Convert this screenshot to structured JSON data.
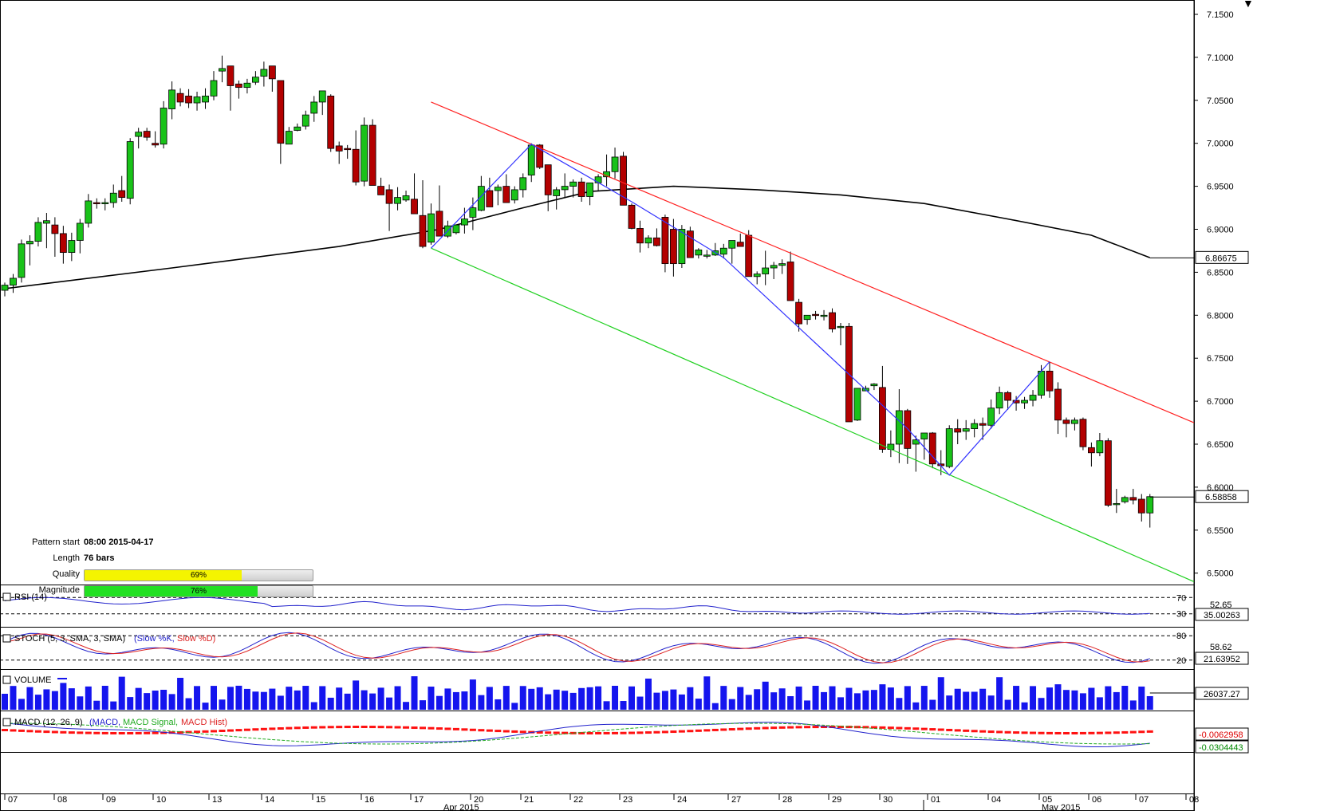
{
  "corner_marker": "▼",
  "main_chart": {
    "price_axis_ticks": [
      "7.1500",
      "7.1000",
      "7.0500",
      "7.0000",
      "6.9500",
      "6.9000",
      "6.8500",
      "6.8000",
      "6.7500",
      "6.7000",
      "6.6500",
      "6.6000",
      "6.5500",
      "6.5000"
    ],
    "ma_value_label": "6.86675",
    "last_price_label": "6.58858",
    "colors": {
      "bull": "#19c219",
      "bear": "#b30000",
      "ma": "#000000",
      "upper_channel": "#ff2020",
      "lower_channel": "#20d020",
      "pattern": "#3333ff"
    }
  },
  "pattern_info": {
    "start_label": "Pattern start",
    "start_value": "08:00 2015-04-17",
    "length_label": "Length",
    "length_value": "76 bars",
    "quality_label": "Quality",
    "quality_value": "69%",
    "quality_fraction": 0.69,
    "quality_color": "#f4f400",
    "magnitude_label": "Magnitude",
    "magnitude_value": "76%",
    "magnitude_fraction": 0.76,
    "magnitude_color": "#22e022"
  },
  "rsi_panel": {
    "title": "RSI (14)",
    "level_70": "70",
    "level_30": "30",
    "mid_label": "52.65",
    "value_label": "35.00263"
  },
  "stoch_panel": {
    "title": "STOCH (5, 3, SMA, 3, SMA)",
    "legend_k": "(Slow %K,",
    "legend_d": "Slow %D)",
    "level_80": "80",
    "level_20": "20",
    "mid_label": "58.62",
    "value_label": "21.63952"
  },
  "volume_panel": {
    "title": "VOLUME",
    "value_label": "26037.27"
  },
  "macd_panel": {
    "title": "MACD (12, 26, 9)",
    "legend_macd": "(MACD,",
    "legend_signal": "MACD Signal,",
    "legend_hist": "MACD Hist)",
    "value_label_1": "-0.0062958",
    "value_label_2": "-0.0304443"
  },
  "time_axis": {
    "day_labels": [
      "07",
      "08",
      "09",
      "10",
      "13",
      "14",
      "15",
      "16",
      "17",
      "20",
      "21",
      "22",
      "23",
      "24",
      "27",
      "28",
      "29",
      "30",
      "01",
      "04",
      "05",
      "06",
      "07",
      "08"
    ],
    "month_labels": [
      "Apr 2015",
      "May 2015"
    ]
  },
  "chart_data": {
    "type": "candlestick",
    "series": [
      {
        "name": "Candles",
        "values": [
          [
            6.829,
            6.838,
            6.822,
            6.835
          ],
          [
            6.835,
            6.848,
            6.826,
            6.843
          ],
          [
            6.844,
            6.888,
            6.838,
            6.883
          ],
          [
            6.883,
            6.893,
            6.858,
            6.886
          ],
          [
            6.886,
            6.914,
            6.88,
            6.908
          ],
          [
            6.907,
            6.919,
            6.878,
            6.91
          ],
          [
            6.905,
            6.914,
            6.868,
            6.895
          ],
          [
            6.895,
            6.904,
            6.86,
            6.873
          ],
          [
            6.873,
            6.896,
            6.863,
            6.887
          ],
          [
            6.887,
            6.912,
            6.872,
            6.907
          ],
          [
            6.907,
            6.941,
            6.902,
            6.933
          ],
          [
            6.931,
            6.936,
            6.924,
            6.93
          ],
          [
            6.93,
            6.936,
            6.922,
            6.931
          ],
          [
            6.931,
            6.952,
            6.925,
            6.942
          ],
          [
            6.945,
            6.962,
            6.932,
            6.937
          ],
          [
            6.936,
            7.006,
            6.929,
            7.002
          ],
          [
            7.008,
            7.018,
            6.994,
            7.013
          ],
          [
            7.014,
            7.018,
            7.003,
            7.007
          ],
          [
            7.0,
            7.014,
            6.995,
            6.998
          ],
          [
            6.999,
            7.049,
            6.994,
            7.041
          ],
          [
            7.04,
            7.072,
            7.028,
            7.062
          ],
          [
            7.058,
            7.064,
            7.043,
            7.048
          ],
          [
            7.055,
            7.063,
            7.041,
            7.047
          ],
          [
            7.047,
            7.06,
            7.038,
            7.054
          ],
          [
            7.048,
            7.064,
            7.04,
            7.055
          ],
          [
            7.055,
            7.084,
            7.05,
            7.073
          ],
          [
            7.084,
            7.102,
            7.071,
            7.087
          ],
          [
            7.09,
            7.09,
            7.038,
            7.067
          ],
          [
            7.069,
            7.073,
            7.052,
            7.065
          ],
          [
            7.065,
            7.075,
            7.058,
            7.07
          ],
          [
            7.071,
            7.084,
            7.068,
            7.077
          ],
          [
            7.078,
            7.095,
            7.066,
            7.086
          ],
          [
            7.09,
            7.09,
            7.06,
            7.075
          ],
          [
            7.073,
            7.073,
            6.976,
            7.0
          ],
          [
            6.999,
            7.019,
            6.999,
            7.014
          ],
          [
            7.015,
            7.023,
            7.014,
            7.019
          ],
          [
            7.02,
            7.038,
            7.016,
            7.033
          ],
          [
            7.035,
            7.055,
            7.025,
            7.048
          ],
          [
            7.048,
            7.06,
            7.033,
            7.061
          ],
          [
            7.055,
            7.057,
            6.99,
            6.994
          ],
          [
            6.997,
            7.002,
            6.976,
            6.991
          ],
          [
            6.994,
            6.998,
            6.982,
            6.993
          ],
          [
            6.993,
            7.015,
            6.951,
            6.955
          ],
          [
            6.956,
            7.03,
            6.95,
            7.021
          ],
          [
            7.021,
            7.028,
            6.978,
            6.951
          ],
          [
            6.95,
            6.96,
            6.94,
            6.94
          ],
          [
            6.946,
            6.952,
            6.898,
            6.93
          ],
          [
            6.93,
            6.949,
            6.922,
            6.937
          ],
          [
            6.934,
            6.945,
            6.932,
            6.939
          ],
          [
            6.935,
            6.965,
            6.918,
            6.918
          ],
          [
            6.916,
            6.957,
            6.878,
            6.88
          ],
          [
            6.885,
            6.93,
            6.882,
            6.918
          ],
          [
            6.921,
            6.951,
            6.897,
            6.892
          ],
          [
            6.892,
            6.91,
            6.89,
            6.904
          ],
          [
            6.896,
            6.905,
            6.894,
            6.905
          ],
          [
            6.905,
            6.925,
            6.895,
            6.912
          ],
          [
            6.914,
            6.937,
            6.899,
            6.925
          ],
          [
            6.922,
            6.962,
            6.921,
            6.95
          ],
          [
            6.945,
            6.96,
            6.926,
            6.926
          ],
          [
            6.945,
            6.952,
            6.928,
            6.949
          ],
          [
            6.95,
            6.964,
            6.94,
            6.931
          ],
          [
            6.934,
            6.95,
            6.93,
            6.946
          ],
          [
            6.946,
            6.965,
            6.937,
            6.96
          ],
          [
            6.963,
            7.0,
            6.955,
            6.998
          ],
          [
            6.998,
            6.999,
            6.97,
            6.972
          ],
          [
            6.975,
            6.975,
            6.921,
            6.94
          ],
          [
            6.939,
            6.949,
            6.923,
            6.946
          ],
          [
            6.946,
            6.965,
            6.937,
            6.95
          ],
          [
            6.95,
            6.958,
            6.937,
            6.955
          ],
          [
            6.955,
            6.96,
            6.932,
            6.938
          ],
          [
            6.938,
            6.95,
            6.928,
            6.954
          ],
          [
            6.954,
            6.964,
            6.944,
            6.961
          ],
          [
            6.961,
            6.987,
            6.95,
            6.967
          ],
          [
            6.967,
            6.995,
            6.959,
            6.984
          ],
          [
            6.985,
            6.99,
            6.954,
            6.928
          ],
          [
            6.928,
            6.93,
            6.9,
            6.901
          ],
          [
            6.901,
            6.91,
            6.873,
            6.884
          ],
          [
            6.884,
            6.893,
            6.878,
            6.89
          ],
          [
            6.89,
            6.901,
            6.88,
            6.881
          ],
          [
            6.914,
            6.917,
            6.85,
            6.86
          ],
          [
            6.9,
            6.912,
            6.845,
            6.86
          ],
          [
            6.86,
            6.905,
            6.855,
            6.9
          ],
          [
            6.898,
            6.903,
            6.87,
            6.867
          ],
          [
            6.87,
            6.878,
            6.866,
            6.876
          ],
          [
            6.87,
            6.876,
            6.866,
            6.87
          ],
          [
            6.87,
            6.884,
            6.869,
            6.875
          ],
          [
            6.871,
            6.883,
            6.866,
            6.878
          ],
          [
            6.878,
            6.886,
            6.86,
            6.887
          ],
          [
            6.885,
            6.895,
            6.88,
            6.88
          ],
          [
            6.893,
            6.899,
            6.868,
            6.845
          ],
          [
            6.845,
            6.851,
            6.836,
            6.848
          ],
          [
            6.848,
            6.875,
            6.835,
            6.855
          ],
          [
            6.855,
            6.862,
            6.842,
            6.858
          ],
          [
            6.858,
            6.865,
            6.848,
            6.86
          ],
          [
            6.862,
            6.874,
            6.845,
            6.817
          ],
          [
            6.815,
            6.819,
            6.781,
            6.79
          ],
          [
            6.795,
            6.8,
            6.789,
            6.8
          ],
          [
            6.801,
            6.805,
            6.795,
            6.8
          ],
          [
            6.8,
            6.806,
            6.794,
            6.8
          ],
          [
            6.803,
            6.808,
            6.78,
            6.784
          ],
          [
            6.786,
            6.791,
            6.765,
            6.787
          ],
          [
            6.787,
            6.791,
            6.677,
            6.676
          ],
          [
            6.678,
            6.695,
            6.677,
            6.715
          ],
          [
            6.712,
            6.718,
            6.712,
            6.715
          ],
          [
            6.718,
            6.721,
            6.713,
            6.72
          ],
          [
            6.716,
            6.741,
            6.64,
            6.644
          ],
          [
            6.644,
            6.666,
            6.635,
            6.65
          ],
          [
            6.65,
            6.714,
            6.628,
            6.689
          ],
          [
            6.689,
            6.691,
            6.627,
            6.645
          ],
          [
            6.65,
            6.66,
            6.618,
            6.655
          ],
          [
            6.656,
            6.661,
            6.632,
            6.663
          ],
          [
            6.663,
            6.664,
            6.622,
            6.627
          ],
          [
            6.627,
            6.643,
            6.614,
            6.625
          ],
          [
            6.624,
            6.672,
            6.622,
            6.668
          ],
          [
            6.668,
            6.679,
            6.65,
            6.664
          ],
          [
            6.665,
            6.678,
            6.655,
            6.668
          ],
          [
            6.668,
            6.679,
            6.658,
            6.674
          ],
          [
            6.674,
            6.681,
            6.655,
            6.672
          ],
          [
            6.672,
            6.702,
            6.668,
            6.692
          ],
          [
            6.692,
            6.717,
            6.685,
            6.71
          ],
          [
            6.71,
            6.712,
            6.69,
            6.701
          ],
          [
            6.701,
            6.706,
            6.689,
            6.698
          ],
          [
            6.698,
            6.705,
            6.691,
            6.701
          ],
          [
            6.701,
            6.713,
            6.694,
            6.707
          ],
          [
            6.707,
            6.742,
            6.703,
            6.735
          ],
          [
            6.735,
            6.746,
            6.704,
            6.712
          ],
          [
            6.714,
            6.722,
            6.662,
            6.678
          ],
          [
            6.678,
            6.681,
            6.658,
            6.674
          ],
          [
            6.674,
            6.681,
            6.666,
            6.678
          ],
          [
            6.679,
            6.681,
            6.643,
            6.647
          ],
          [
            6.646,
            6.652,
            6.624,
            6.64
          ],
          [
            6.64,
            6.663,
            6.636,
            6.654
          ],
          [
            6.654,
            6.657,
            6.577,
            6.579
          ],
          [
            6.58,
            6.598,
            6.57,
            6.581
          ],
          [
            6.583,
            6.59,
            6.581,
            6.588
          ],
          [
            6.588,
            6.598,
            6.58,
            6.585
          ],
          [
            6.586,
            6.592,
            6.56,
            6.57
          ],
          [
            6.57,
            6.592,
            6.553,
            6.589
          ]
        ]
      },
      {
        "name": "Moving Average"
      },
      {
        "name": "Pattern zigzag"
      },
      {
        "name": "Upper channel line"
      },
      {
        "name": "Lower channel line"
      }
    ]
  }
}
